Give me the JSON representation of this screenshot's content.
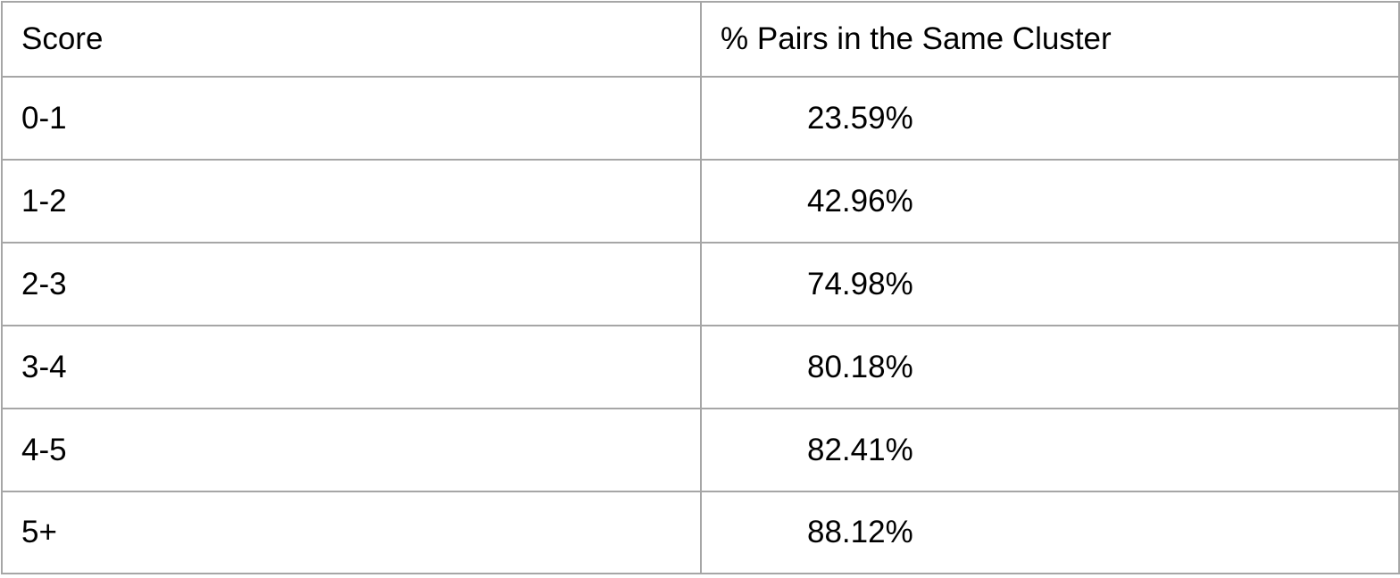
{
  "table": {
    "headers": [
      "Score",
      "% Pairs in the Same Cluster"
    ],
    "rows": [
      {
        "score": "0-1",
        "percent": "23.59%"
      },
      {
        "score": "1-2",
        "percent": "42.96%"
      },
      {
        "score": "2-3",
        "percent": "74.98%"
      },
      {
        "score": "3-4",
        "percent": "80.18%"
      },
      {
        "score": "4-5",
        "percent": "82.41%"
      },
      {
        "score": "5+",
        "percent": "88.12%"
      }
    ]
  }
}
